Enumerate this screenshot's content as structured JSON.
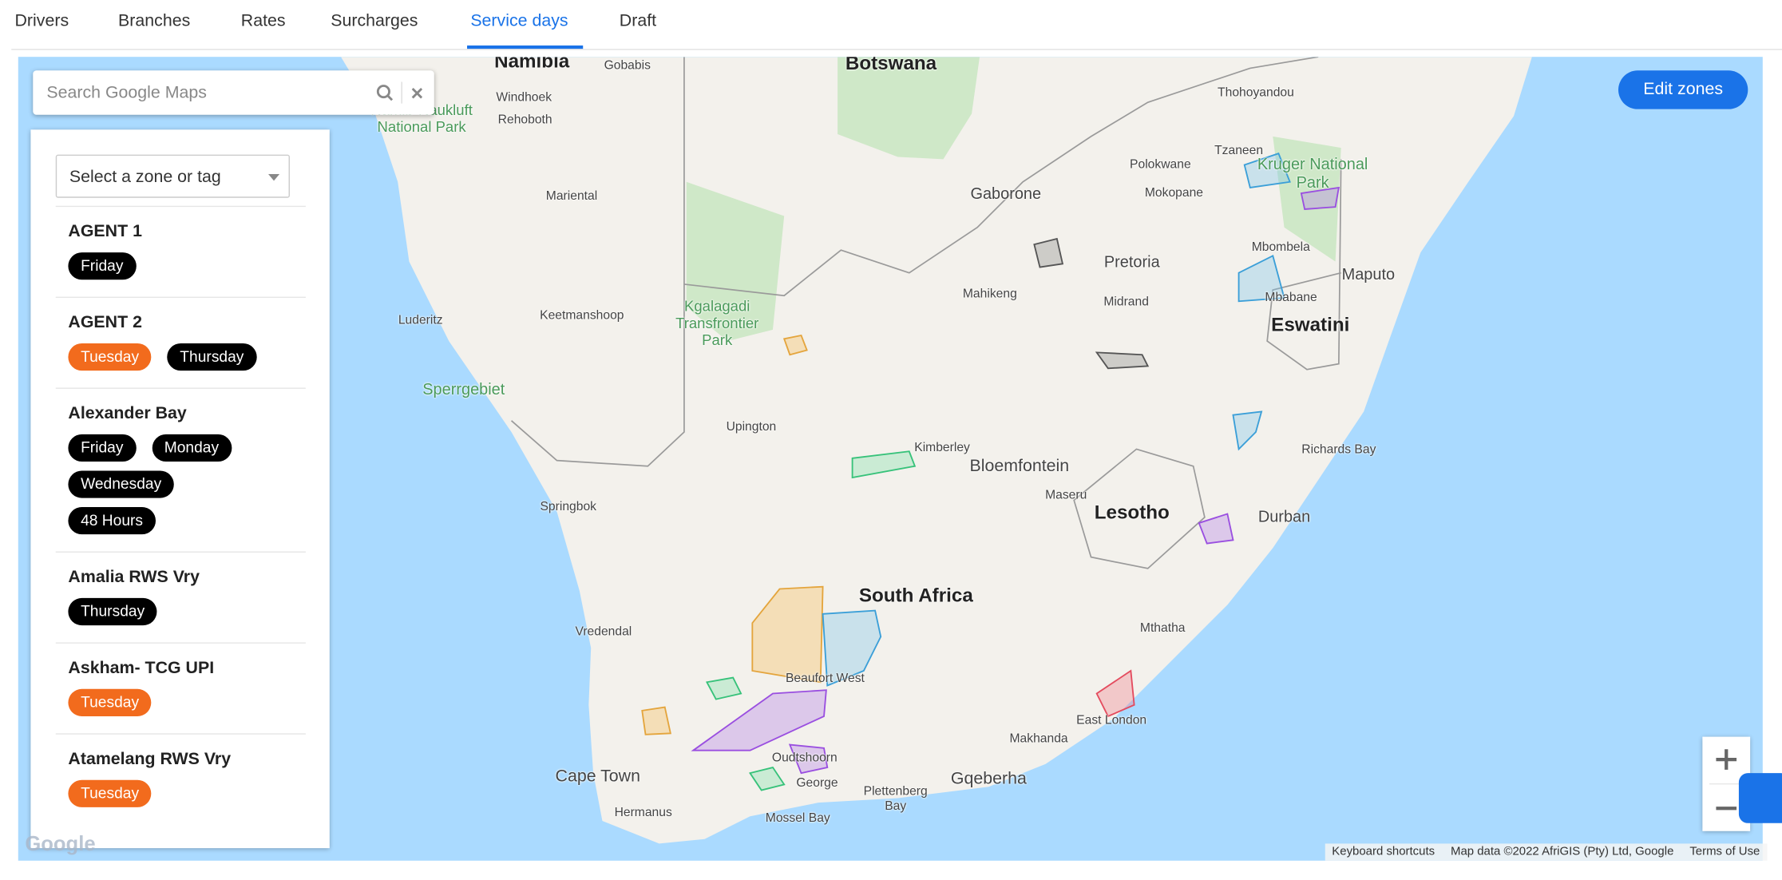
{
  "tabs": [
    "Drivers",
    "Branches",
    "Rates",
    "Surcharges",
    "Service days",
    "Draft"
  ],
  "active_tab": 4,
  "search": {
    "placeholder": "Search Google Maps"
  },
  "zone_select": {
    "placeholder": "Select a zone or tag"
  },
  "zones": [
    {
      "name": "AGENT 1",
      "tags": [
        {
          "label": "Friday",
          "color": "#000000"
        }
      ]
    },
    {
      "name": "AGENT 2",
      "tags": [
        {
          "label": "Tuesday",
          "color": "#f26b1d"
        },
        {
          "label": "Thursday",
          "color": "#000000"
        }
      ]
    },
    {
      "name": "Alexander Bay",
      "tags": [
        {
          "label": "Friday",
          "color": "#000000"
        },
        {
          "label": "Monday",
          "color": "#000000"
        },
        {
          "label": "Wednesday",
          "color": "#000000"
        },
        {
          "label": "48 Hours",
          "color": "#000000"
        }
      ]
    },
    {
      "name": "Amalia RWS Vry",
      "tags": [
        {
          "label": "Thursday",
          "color": "#000000"
        }
      ]
    },
    {
      "name": "Askham- TCG UPI",
      "tags": [
        {
          "label": "Tuesday",
          "color": "#f26b1d"
        }
      ]
    },
    {
      "name": "Atamelang RWS Vry",
      "tags": [
        {
          "label": "Tuesday",
          "color": "#f26b1d"
        }
      ]
    }
  ],
  "edit_button": "Edit zones",
  "map": {
    "labels": [
      "Namibia",
      "Botswana",
      "Windhoek",
      "Gobabis",
      "Rehoboth",
      "Namib-Naukluft National Park",
      "Mariental",
      "Gaborone",
      "Keetmanshoop",
      "Luderitz",
      "Sperrgebiet",
      "Kgalagadi Transfrontier Park",
      "Pretoria",
      "Midrand",
      "Mahikeng",
      "Polokwane",
      "Mokopane",
      "Thohoyandou",
      "Tzaneen",
      "Kruger National Park",
      "Mbombela",
      "Maputo",
      "Mbabane",
      "Eswatini",
      "Upington",
      "Kimberley",
      "Bloemfontein",
      "Maseru",
      "Lesotho",
      "Richards Bay",
      "Durban",
      "Springbok",
      "South Africa",
      "Vredendal",
      "Beaufort West",
      "Mthatha",
      "East London",
      "Makhanda",
      "Gqeberha",
      "Oudtshoorn",
      "George",
      "Plettenberg Bay",
      "Mossel Bay",
      "Cape Town",
      "Hermanus"
    ],
    "logo": "Google",
    "attribution": {
      "keyboard": "Keyboard shortcuts",
      "data": "Map data ©2022 AfriGIS (Pty) Ltd, Google",
      "terms": "Terms of Use"
    }
  }
}
